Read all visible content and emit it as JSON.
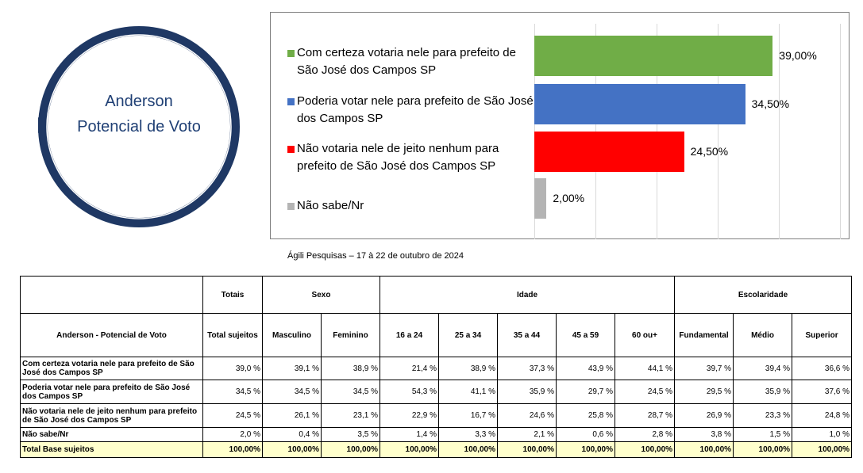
{
  "header": {
    "title": "Anderson",
    "subtitle": "Potencial de Voto"
  },
  "chart_data": {
    "type": "bar",
    "orientation": "horizontal",
    "categories": [
      "Com certeza votaria nele para prefeito de São José dos Campos SP",
      "Poderia votar nele para prefeito de São José dos Campos SP",
      "Não votaria nele de jeito nenhum para prefeito de São José dos Campos SP",
      "Não sabe/Nr"
    ],
    "values": [
      39,
      34.5,
      24.5,
      2
    ],
    "value_labels": [
      "39,00%",
      "34,50%",
      "24,50%",
      "2,00%"
    ],
    "colors": [
      "#70ad47",
      "#4472c4",
      "#ff0000",
      "#b4b4b4"
    ],
    "xlim": [
      0,
      50
    ],
    "xticks": [
      0,
      10,
      20,
      30,
      40,
      50
    ],
    "grid": true
  },
  "caption": "Ágili Pesquisas – 17 à 22 de outubro de 2024",
  "table": {
    "groups": [
      "Totais",
      "Sexo",
      "Idade",
      "Escolaridade"
    ],
    "columns": [
      "Anderson - Potencial de Voto",
      "Total sujeitos",
      "Masculino",
      "Feminino",
      "16 a 24",
      "25 a 34",
      "35 a 44",
      "45 a 59",
      "60 ou+",
      "Fundamental",
      "Médio",
      "Superior"
    ],
    "rows": [
      [
        "Com certeza votaria nele para prefeito de São José dos Campos SP",
        "39,0 %",
        "39,1 %",
        "38,9 %",
        "21,4 %",
        "38,9 %",
        "37,3 %",
        "43,9 %",
        "44,1 %",
        "39,7 %",
        "39,4 %",
        "36,6 %"
      ],
      [
        "Poderia votar nele para prefeito de São José dos Campos SP",
        "34,5 %",
        "34,5 %",
        "34,5 %",
        "54,3 %",
        "41,1 %",
        "35,9 %",
        "29,7 %",
        "24,5 %",
        "29,5 %",
        "35,9 %",
        "37,6 %"
      ],
      [
        "Não votaria nele de jeito nenhum para prefeito de São José dos Campos SP",
        "24,5 %",
        "26,1 %",
        "23,1 %",
        "22,9 %",
        "16,7 %",
        "24,6 %",
        "25,8 %",
        "28,7 %",
        "26,9 %",
        "23,3 %",
        "24,8 %"
      ],
      [
        "Não sabe/Nr",
        "2,0 %",
        "0,4 %",
        "3,5 %",
        "1,4 %",
        "3,3 %",
        "2,1 %",
        "0,6 %",
        "2,8 %",
        "3,8 %",
        "1,5 %",
        "1,0 %"
      ],
      [
        "Total Base sujeitos",
        "100,00%",
        "100,00%",
        "100,00%",
        "100,00%",
        "100,00%",
        "100,00%",
        "100,00%",
        "100,00%",
        "100,00%",
        "100,00%",
        "100,00%"
      ]
    ]
  }
}
